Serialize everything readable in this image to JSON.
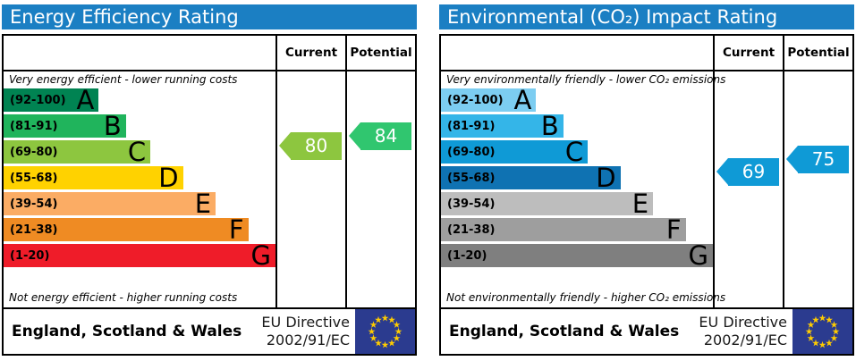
{
  "colors": {
    "header_bg": "#1b7fc3",
    "flag_bg": "#2b3b8f",
    "flag_star": "#ffcc00"
  },
  "chart_data": [
    {
      "type": "bar",
      "title": "Energy Efficiency Rating",
      "categories": [
        "A (92-100)",
        "B (81-91)",
        "C (69-80)",
        "D (55-68)",
        "E (39-54)",
        "F (21-38)",
        "G (1-20)"
      ],
      "band_colors": [
        "#008352",
        "#20b45c",
        "#8dc63f",
        "#ffd200",
        "#fbac64",
        "#ef8b23",
        "#ef1c29"
      ],
      "band_bar_lengths_pct": [
        35,
        45,
        54,
        66,
        78,
        90,
        100
      ],
      "scale_range": [
        1,
        100
      ],
      "current": 80,
      "current_band": "C",
      "potential": 84,
      "potential_band": "B",
      "top_caption": "Very energy efficient - lower running costs",
      "bottom_caption": "Not energy efficient - higher running costs",
      "region": "England, Scotland & Wales",
      "directive": "EU Directive 2002/91/EC"
    },
    {
      "type": "bar",
      "title": "Environmental (CO₂) Impact Rating",
      "categories": [
        "A (92-100)",
        "B (81-91)",
        "C (69-80)",
        "D (55-68)",
        "E (39-54)",
        "F (21-38)",
        "G (1-20)"
      ],
      "band_colors": [
        "#7ccdf1",
        "#34b5e8",
        "#0f9ad6",
        "#0f72b2",
        "#bdbdbd",
        "#9e9e9e",
        "#7f7f7f"
      ],
      "band_bar_lengths_pct": [
        35,
        45,
        54,
        66,
        78,
        90,
        100
      ],
      "scale_range": [
        1,
        100
      ],
      "current": 69,
      "current_band": "C",
      "potential": 75,
      "potential_band": "C",
      "top_caption": "Very environmentally friendly - lower CO₂ emissions",
      "bottom_caption": "Not environmentally friendly - higher CO₂ emissions",
      "region": "England, Scotland & Wales",
      "directive": "EU Directive 2002/91/EC"
    }
  ],
  "panels": [
    {
      "title": "Energy Efficiency Rating",
      "col_current": "Current",
      "col_potential": "Potential",
      "caption_top": "Very energy efficient - lower running costs",
      "caption_bottom": "Not energy efficient - higher running costs",
      "bands": [
        {
          "range": "(92-100)",
          "letter": "A",
          "color": "#008352",
          "width": "35%"
        },
        {
          "range": "(81-91)",
          "letter": "B",
          "color": "#20b45c",
          "width": "45%"
        },
        {
          "range": "(69-80)",
          "letter": "C",
          "color": "#8dc63f",
          "width": "54%"
        },
        {
          "range": "(55-68)",
          "letter": "D",
          "color": "#ffd200",
          "width": "66%"
        },
        {
          "range": "(39-54)",
          "letter": "E",
          "color": "#fbac64",
          "width": "78%"
        },
        {
          "range": "(21-38)",
          "letter": "F",
          "color": "#ef8b23",
          "width": "90%"
        },
        {
          "range": "(1-20)",
          "letter": "G",
          "color": "#ef1c29",
          "width": "100%"
        }
      ],
      "current": {
        "value": "80",
        "color": "#8dc63f"
      },
      "potential": {
        "value": "84",
        "color": "#30c66f"
      },
      "footer_region": "England, Scotland & Wales",
      "directive_line1": "EU Directive",
      "directive_line2": "2002/91/EC"
    },
    {
      "title": "Environmental (CO₂) Impact Rating",
      "col_current": "Current",
      "col_potential": "Potential",
      "caption_top": "Very environmentally friendly - lower CO₂ emissions",
      "caption_bottom": "Not environmentally friendly - higher CO₂ emissions",
      "bands": [
        {
          "range": "(92-100)",
          "letter": "A",
          "color": "#7ccdf1",
          "width": "35%"
        },
        {
          "range": "(81-91)",
          "letter": "B",
          "color": "#34b5e8",
          "width": "45%"
        },
        {
          "range": "(69-80)",
          "letter": "C",
          "color": "#0f9ad6",
          "width": "54%"
        },
        {
          "range": "(55-68)",
          "letter": "D",
          "color": "#0f72b2",
          "width": "66%"
        },
        {
          "range": "(39-54)",
          "letter": "E",
          "color": "#bdbdbd",
          "width": "78%"
        },
        {
          "range": "(21-38)",
          "letter": "F",
          "color": "#9e9e9e",
          "width": "90%"
        },
        {
          "range": "(1-20)",
          "letter": "G",
          "color": "#7f7f7f",
          "width": "100%"
        }
      ],
      "current": {
        "value": "69",
        "color": "#0f9ad6"
      },
      "potential": {
        "value": "75",
        "color": "#0f9ad6"
      },
      "footer_region": "England, Scotland & Wales",
      "directive_line1": "EU Directive",
      "directive_line2": "2002/91/EC"
    }
  ]
}
